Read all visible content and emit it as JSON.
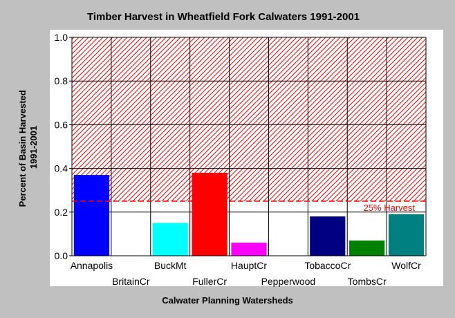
{
  "chart_data": {
    "type": "bar",
    "title": "Timber Harvest in Wheatfield Fork Calwaters 1991-2001",
    "xlabel": "Calwater Planning Watersheds",
    "ylabel_lines": [
      "Percent of Basin Harvested",
      "1991-2001"
    ],
    "ylim": [
      0,
      1.0
    ],
    "yticks": [
      "0.0",
      "0.2",
      "0.4",
      "0.6",
      "0.8",
      "1.0"
    ],
    "grid": true,
    "categories": [
      "Annapolis",
      "BritainCr",
      "BuckMt",
      "FullerCr",
      "HauptCr",
      "Pepperwood",
      "TobaccoCr",
      "TombsCr",
      "WolfCr"
    ],
    "values": [
      0.37,
      0,
      0.15,
      0.38,
      0.06,
      0,
      0.18,
      0.07,
      0.19
    ],
    "colors": [
      "#0000ff",
      "#0000ff",
      "#00ffff",
      "#ff0000",
      "#ff00ff",
      "#0000ff",
      "#000080",
      "#008000",
      "#008080"
    ],
    "threshold": {
      "value": 0.25,
      "label": "25% Harvest",
      "color": "#ff0000",
      "region": "hatched above threshold"
    }
  }
}
